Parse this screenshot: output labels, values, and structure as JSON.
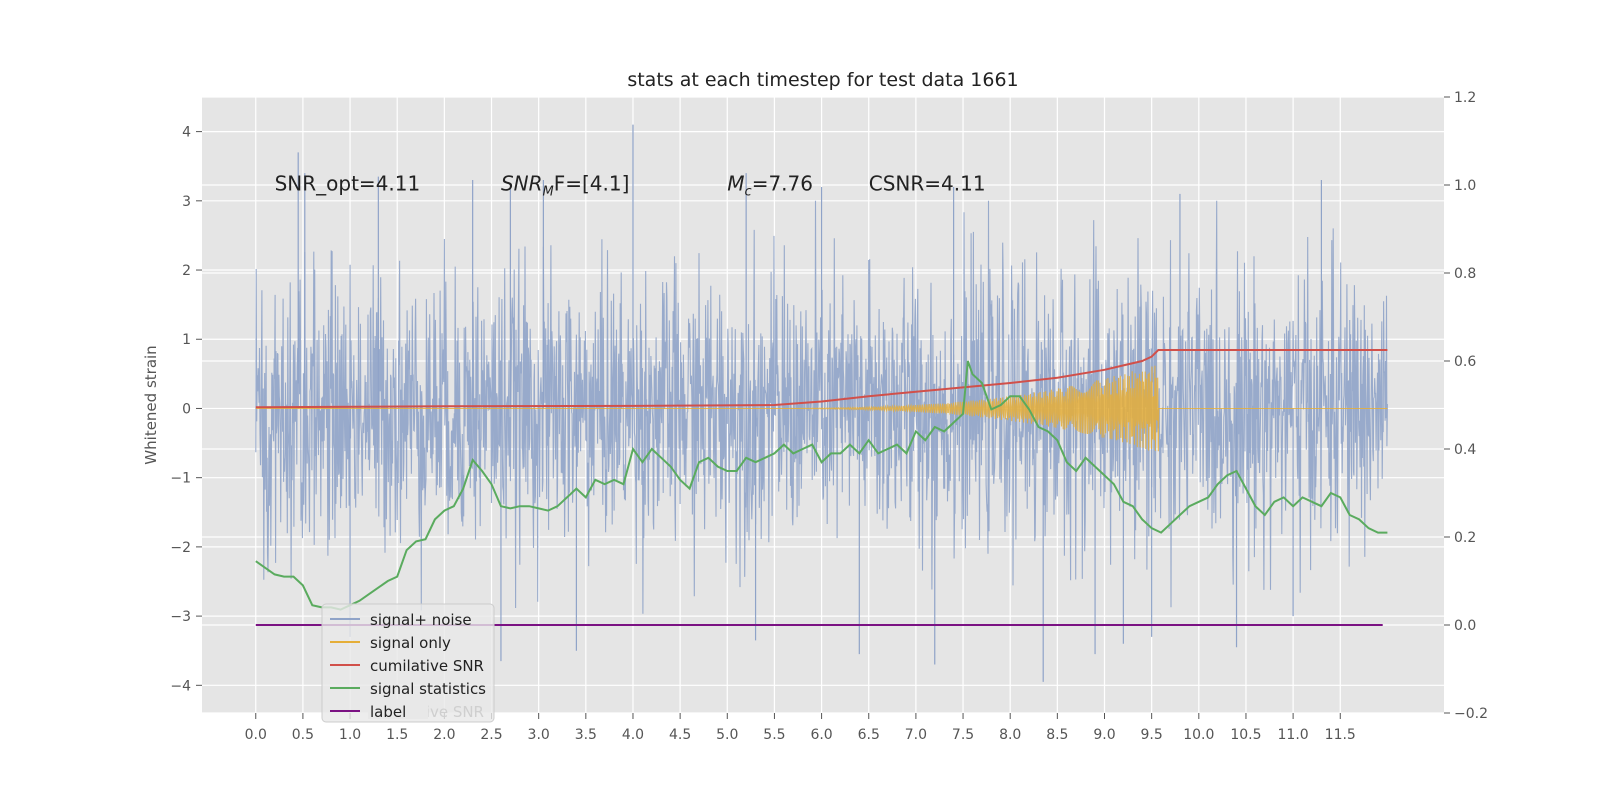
{
  "chart_data": {
    "type": "line",
    "title": "stats at each timestep for test data 1661",
    "ylabel": "Whitened strain",
    "xlabel": "",
    "xlim": [
      -0.57,
      12.6
    ],
    "ylim": [
      -4.4,
      4.5
    ],
    "y2lim": [
      -0.2,
      1.2
    ],
    "grid": true,
    "legend_position": "lower-left",
    "x_ticks": [
      0.0,
      0.5,
      1.0,
      1.5,
      2.0,
      2.5,
      3.0,
      3.5,
      4.0,
      4.5,
      5.0,
      5.5,
      6.0,
      6.5,
      7.0,
      7.5,
      8.0,
      8.5,
      9.0,
      9.5,
      10.0,
      10.5,
      11.0,
      11.5
    ],
    "x_tick_labels": [
      "0.0",
      "0.5",
      "1.0",
      "1.5",
      "2.0",
      "2.5",
      "3.0",
      "3.5",
      "4.0",
      "4.5",
      "5.0",
      "5.5",
      "6.0",
      "6.5",
      "7.0",
      "7.5",
      "8.0",
      "8.5",
      "9.0",
      "9.5",
      "10.0",
      "10.5",
      "11.0",
      "11.5"
    ],
    "y_ticks": [
      4,
      3,
      2,
      1,
      0,
      -1,
      -2,
      -3,
      -4
    ],
    "y_tick_labels": [
      "4",
      "3",
      "2",
      "1",
      "0",
      "−1",
      "−2",
      "−3",
      "−4"
    ],
    "y2_ticks": [
      1.2,
      1.0,
      0.8,
      0.6,
      0.4,
      0.2,
      0.0,
      -0.2
    ],
    "y2_tick_labels": [
      "1.2",
      "1.0",
      "0.8",
      "0.6",
      "0.4",
      "0.2",
      "0.0",
      "−0.2"
    ],
    "annotations": [
      {
        "key": "snr-opt",
        "text": "SNR_opt=4.11",
        "x": 0.2,
        "y": 3.15
      },
      {
        "key": "snr-mf",
        "text": "SNR",
        "sub": "M",
        "tail": "F=[4.1]",
        "x": 2.6,
        "y": 3.15
      },
      {
        "key": "chirp-mass",
        "text": "M",
        "sub": "c",
        "tail": "=7.76",
        "x": 5.0,
        "y": 3.15
      },
      {
        "key": "csnr",
        "text": "CSNR=4.11",
        "x": 6.5,
        "y": 3.15
      }
    ],
    "series": [
      {
        "name": "signal+ noise",
        "color": "#8fa3c8",
        "axis": "left",
        "kind": "noise",
        "x_range": [
          0.0,
          12.0
        ],
        "sigma": 1.0,
        "peaks": [
          {
            "x": 0.45,
            "y": 3.7
          },
          {
            "x": 0.52,
            "y": 3.4
          },
          {
            "x": 1.3,
            "y": 3.35
          },
          {
            "x": 2.7,
            "y": 3.2
          },
          {
            "x": 3.05,
            "y": 3.3
          },
          {
            "x": 4.0,
            "y": 4.1
          },
          {
            "x": 5.2,
            "y": 3.4
          },
          {
            "x": 6.0,
            "y": 3.2
          },
          {
            "x": 7.4,
            "y": 3.2
          },
          {
            "x": 9.8,
            "y": 3.1
          },
          {
            "x": 11.3,
            "y": 3.3
          },
          {
            "x": 2.3,
            "y": 3.3
          },
          {
            "x": 2.6,
            "y": -3.65
          },
          {
            "x": 3.4,
            "y": -3.5
          },
          {
            "x": 6.4,
            "y": -3.55
          },
          {
            "x": 7.2,
            "y": -3.7
          },
          {
            "x": 8.35,
            "y": -3.95
          },
          {
            "x": 8.9,
            "y": -3.55
          },
          {
            "x": 9.2,
            "y": -3.4
          },
          {
            "x": 10.4,
            "y": -3.45
          },
          {
            "x": 11.0,
            "y": -3.0
          },
          {
            "x": 1.0,
            "y": -3.3
          },
          {
            "x": 5.3,
            "y": -3.35
          },
          {
            "x": 9.5,
            "y": -3.3
          }
        ]
      },
      {
        "name": "signal only",
        "color": "#e5ae38",
        "axis": "left",
        "kind": "chirp",
        "start_x": 5.6,
        "end_x": 9.57,
        "peak_amplitude": 0.65,
        "x_range": [
          0.0,
          12.0
        ]
      },
      {
        "name": "cumilative SNR",
        "color": "#d1504a",
        "axis": "right",
        "x": [
          0.0,
          2.0,
          4.0,
          5.5,
          6.0,
          6.5,
          7.0,
          7.5,
          8.0,
          8.5,
          9.0,
          9.2,
          9.4,
          9.5,
          9.57,
          10.0,
          11.0,
          12.0
        ],
        "y": [
          0.495,
          0.497,
          0.498,
          0.5,
          0.508,
          0.52,
          0.53,
          0.54,
          0.55,
          0.562,
          0.58,
          0.59,
          0.6,
          0.61,
          0.625,
          0.625,
          0.625,
          0.625
        ]
      },
      {
        "name": "signal statistics",
        "color": "#5aab5e",
        "axis": "right",
        "x": [
          0.0,
          0.1,
          0.2,
          0.3,
          0.4,
          0.5,
          0.6,
          0.7,
          0.8,
          0.9,
          1.0,
          1.1,
          1.2,
          1.3,
          1.4,
          1.5,
          1.6,
          1.7,
          1.8,
          1.9,
          2.0,
          2.1,
          2.2,
          2.3,
          2.4,
          2.5,
          2.6,
          2.7,
          2.8,
          2.9,
          3.0,
          3.1,
          3.2,
          3.3,
          3.4,
          3.5,
          3.6,
          3.7,
          3.8,
          3.9,
          4.0,
          4.1,
          4.2,
          4.3,
          4.4,
          4.5,
          4.6,
          4.7,
          4.8,
          4.9,
          5.0,
          5.1,
          5.2,
          5.3,
          5.4,
          5.5,
          5.6,
          5.7,
          5.8,
          5.9,
          6.0,
          6.1,
          6.2,
          6.3,
          6.4,
          6.5,
          6.6,
          6.7,
          6.8,
          6.9,
          7.0,
          7.1,
          7.2,
          7.3,
          7.4,
          7.5,
          7.55,
          7.6,
          7.7,
          7.8,
          7.9,
          8.0,
          8.1,
          8.2,
          8.3,
          8.4,
          8.5,
          8.6,
          8.7,
          8.8,
          8.9,
          9.0,
          9.1,
          9.2,
          9.3,
          9.4,
          9.5,
          9.6,
          9.7,
          9.8,
          9.9,
          10.0,
          10.1,
          10.2,
          10.3,
          10.4,
          10.5,
          10.6,
          10.7,
          10.8,
          10.9,
          11.0,
          11.1,
          11.2,
          11.3,
          11.4,
          11.5,
          11.6,
          11.7,
          11.8,
          11.9,
          12.0
        ],
        "y": [
          0.145,
          0.13,
          0.115,
          0.11,
          0.11,
          0.09,
          0.045,
          0.04,
          0.04,
          0.035,
          0.045,
          0.055,
          0.07,
          0.085,
          0.1,
          0.11,
          0.17,
          0.19,
          0.195,
          0.24,
          0.26,
          0.27,
          0.31,
          0.375,
          0.35,
          0.32,
          0.27,
          0.265,
          0.27,
          0.27,
          0.265,
          0.26,
          0.27,
          0.29,
          0.31,
          0.29,
          0.33,
          0.32,
          0.33,
          0.32,
          0.4,
          0.37,
          0.4,
          0.38,
          0.36,
          0.33,
          0.31,
          0.37,
          0.38,
          0.36,
          0.35,
          0.35,
          0.38,
          0.37,
          0.38,
          0.39,
          0.41,
          0.39,
          0.4,
          0.41,
          0.37,
          0.39,
          0.39,
          0.41,
          0.39,
          0.42,
          0.39,
          0.4,
          0.41,
          0.39,
          0.44,
          0.42,
          0.45,
          0.44,
          0.46,
          0.48,
          0.6,
          0.57,
          0.55,
          0.49,
          0.5,
          0.52,
          0.52,
          0.49,
          0.45,
          0.44,
          0.42,
          0.37,
          0.35,
          0.38,
          0.36,
          0.34,
          0.32,
          0.28,
          0.27,
          0.24,
          0.22,
          0.21,
          0.23,
          0.25,
          0.27,
          0.28,
          0.29,
          0.32,
          0.34,
          0.35,
          0.31,
          0.27,
          0.25,
          0.28,
          0.29,
          0.27,
          0.29,
          0.28,
          0.27,
          0.3,
          0.29,
          0.25,
          0.24,
          0.22,
          0.21,
          0.21
        ]
      },
      {
        "name": "label",
        "color": "#7b1283",
        "axis": "right",
        "x": [
          0.0,
          11.95
        ],
        "y": [
          0.0,
          0.0
        ]
      }
    ],
    "legend_hidden_text": "cumilative SNR"
  }
}
